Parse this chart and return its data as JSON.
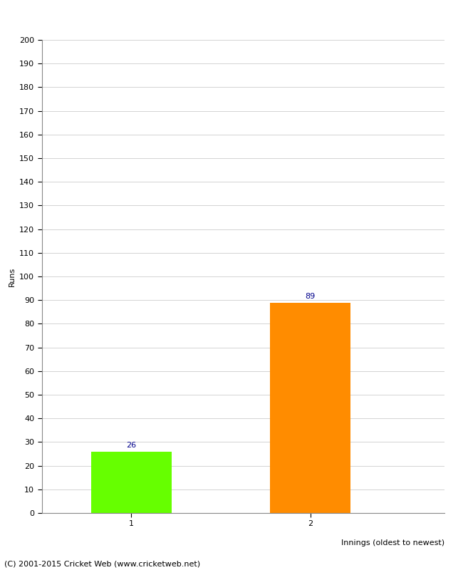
{
  "categories": [
    "1",
    "2"
  ],
  "values": [
    26,
    89
  ],
  "bar_colors": [
    "#66ff00",
    "#ff8c00"
  ],
  "ylabel": "Runs",
  "xlabel": "Innings (oldest to newest)",
  "ylim": [
    0,
    200
  ],
  "yticks": [
    0,
    10,
    20,
    30,
    40,
    50,
    60,
    70,
    80,
    90,
    100,
    110,
    120,
    130,
    140,
    150,
    160,
    170,
    180,
    190,
    200
  ],
  "value_label_color": "#00008b",
  "value_label_fontsize": 8,
  "background_color": "#ffffff",
  "footer_text": "(C) 2001-2015 Cricket Web (www.cricketweb.net)",
  "footer_fontsize": 8,
  "bar_width": 0.45,
  "grid_color": "#cccccc"
}
